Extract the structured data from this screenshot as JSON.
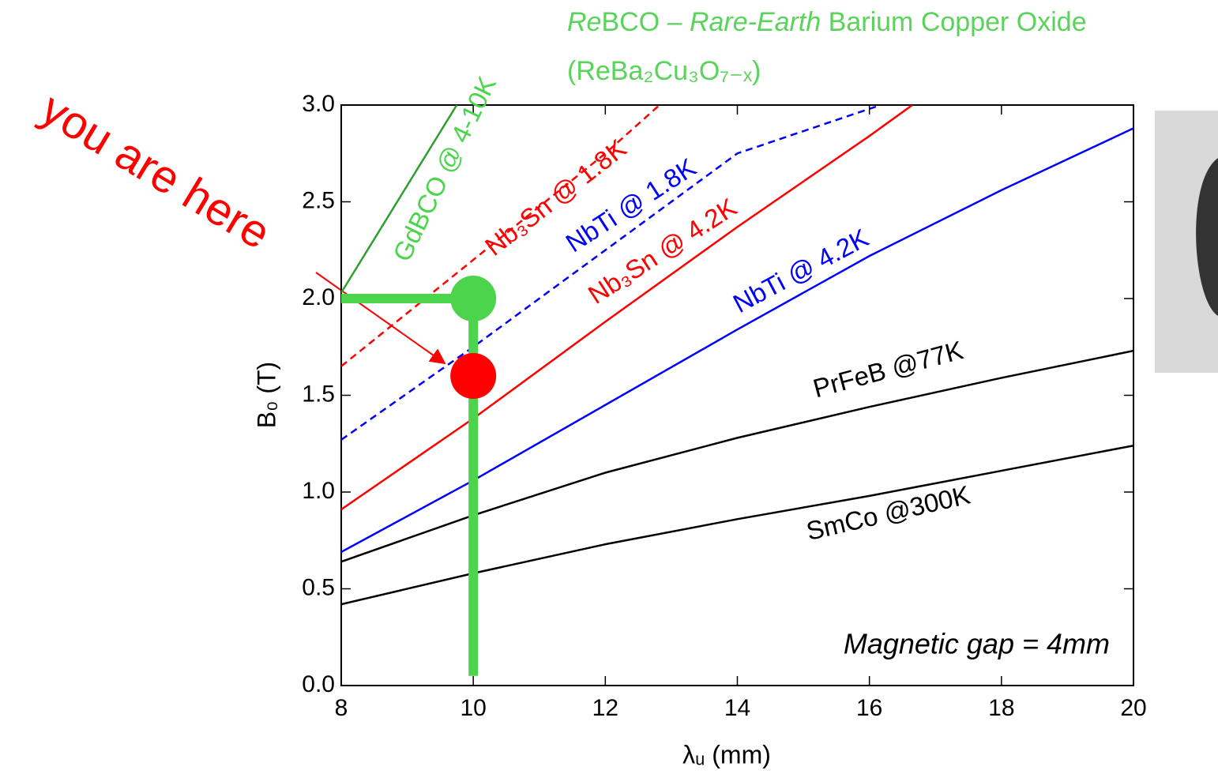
{
  "chart_data": {
    "type": "line",
    "title_parts": [
      "Re",
      "BCO – ",
      "Rare-Earth",
      " Barium Copper Oxide"
    ],
    "formula": "(ReBa₂Cu₃O₇₋ₓ)",
    "annotation": "you are here",
    "note": "Magnetic gap = 4mm",
    "x_label": "λᵤ (mm)",
    "y_label": "B₀ (T)",
    "xlim": [
      8,
      20
    ],
    "ylim": [
      0,
      3
    ],
    "xticks": [
      8,
      10,
      12,
      14,
      16,
      18,
      20
    ],
    "yticks": [
      {
        "value": 0,
        "label": "0.0"
      },
      0.5,
      {
        "value": 1,
        "label": "1.0"
      },
      1.5,
      {
        "value": 2,
        "label": "2.0"
      },
      2.5,
      {
        "value": 3,
        "label": "3.0"
      }
    ],
    "series": [
      {
        "name": "GdBCO @ 4-10K",
        "color": "#2e9e2e",
        "dash": false,
        "x": [
          8,
          9.75
        ],
        "values": [
          2.03,
          3.0
        ]
      },
      {
        "name": "Nb₃Sn @ 1.8K",
        "color": "#ff0000",
        "dash": true,
        "x": [
          8,
          10,
          12,
          12.82
        ],
        "values": [
          1.65,
          2.2,
          2.75,
          3.0
        ]
      },
      {
        "name": "NbTi @ 1.8K",
        "color": "#0000ff",
        "dash": true,
        "x": [
          8,
          10,
          12,
          14,
          16.17
        ],
        "values": [
          1.27,
          1.75,
          2.25,
          2.75,
          3.0
        ]
      },
      {
        "name": "Nb₃Sn @ 4.2K",
        "color": "#ff0000",
        "dash": false,
        "x": [
          8,
          10,
          12,
          14,
          16,
          16.65
        ],
        "values": [
          0.91,
          1.38,
          1.88,
          2.37,
          2.84,
          3.0
        ]
      },
      {
        "name": "NbTi @ 4.2K",
        "color": "#0000ff",
        "dash": false,
        "x": [
          8,
          10,
          12,
          14,
          16,
          18,
          20
        ],
        "values": [
          0.69,
          1.06,
          1.45,
          1.84,
          2.22,
          2.56,
          2.88
        ]
      },
      {
        "name": "PrFeB @77K",
        "color": "#000000",
        "dash": false,
        "x": [
          8,
          10,
          12,
          14,
          16,
          18,
          20
        ],
        "values": [
          0.64,
          0.88,
          1.1,
          1.28,
          1.44,
          1.59,
          1.73
        ]
      },
      {
        "name": "SmCo @300K",
        "color": "#000000",
        "dash": false,
        "x": [
          8,
          10,
          12,
          14,
          16,
          18,
          20
        ],
        "values": [
          0.42,
          0.58,
          0.73,
          0.86,
          0.98,
          1.11,
          1.24
        ]
      }
    ],
    "markers": [
      {
        "x": 10,
        "y": 2.0,
        "color": "#4cd44c"
      },
      {
        "x": 10,
        "y": 1.6,
        "color": "#ff0000"
      }
    ],
    "guides": [
      {
        "x": [
          8,
          10
        ],
        "y": [
          2.0,
          2.0
        ]
      },
      {
        "x": [
          10,
          10
        ],
        "y": [
          0.05,
          1.9
        ]
      }
    ]
  }
}
